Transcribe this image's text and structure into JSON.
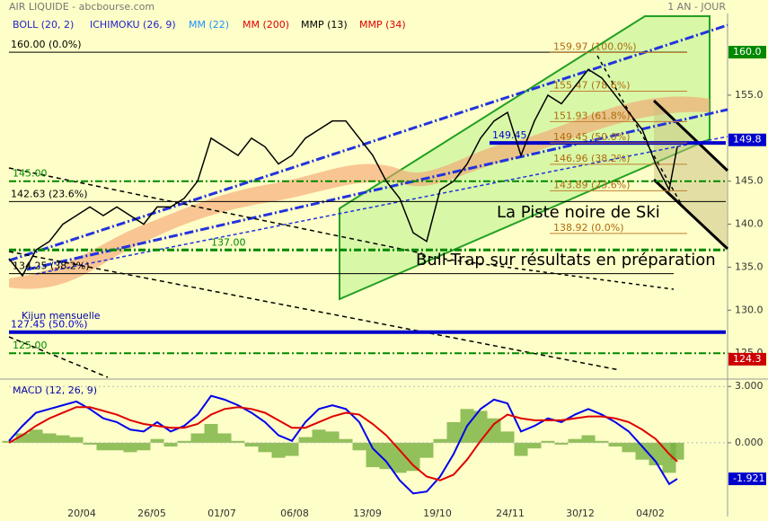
{
  "chart_data": [
    {
      "type": "line",
      "title": "AIR LIQUIDE - abcbourse.com",
      "subtitle": "1 AN - JOUR",
      "indicators": [
        {
          "name": "BOLL (20, 2)",
          "color": "#2222cc"
        },
        {
          "name": "ICHIMOKU (26, 9)",
          "color": "#2222cc"
        },
        {
          "name": "MM (22)",
          "color": "#1e90ff"
        },
        {
          "name": "MM (200)",
          "color": "#e00000"
        },
        {
          "name": "MMP (13)",
          "color": "#000000"
        },
        {
          "name": "MMP (34)",
          "color": "#e00000"
        }
      ],
      "x": [
        0,
        5,
        10,
        15,
        20,
        25,
        30,
        35,
        40,
        45,
        50,
        55,
        60,
        65,
        70,
        75,
        80,
        85,
        90,
        95,
        100,
        105,
        110,
        115,
        120,
        125,
        130,
        135,
        140,
        145,
        150,
        155,
        160,
        165,
        170,
        175,
        180,
        185,
        190,
        195,
        200,
        205,
        210,
        215,
        220,
        225,
        230,
        235,
        240,
        245,
        248
      ],
      "xlim": [
        0,
        266
      ],
      "series": [
        {
          "color": "#000000",
          "values": [
            136,
            134,
            137,
            138,
            140,
            141,
            142,
            141,
            142,
            141,
            140,
            142,
            142,
            143,
            145,
            150,
            149,
            148,
            150,
            149,
            147,
            148,
            150,
            151,
            152,
            152,
            150,
            148,
            145,
            143,
            139,
            138,
            144,
            145,
            147,
            150,
            152,
            153,
            148,
            152,
            155,
            154,
            156,
            158,
            157,
            155,
            153,
            151,
            147,
            144,
            149
          ]
        }
      ],
      "ylim": [
        122.2,
        164.5
      ],
      "yticks": [
        {
          "value": 125,
          "label": "125.0"
        },
        {
          "value": 130,
          "label": "130.0"
        },
        {
          "value": 135,
          "label": "135.0"
        },
        {
          "value": 140,
          "label": "140.0"
        },
        {
          "value": 145,
          "label": "145.0"
        },
        {
          "value": 155,
          "label": "155.0"
        }
      ],
      "tags": [
        {
          "value": 160,
          "label": "160.0",
          "color": "#008800"
        },
        {
          "value": 149.8,
          "label": "149.8",
          "color": "#0000cc"
        },
        {
          "value": 124.3,
          "label": "124.3",
          "color": "#cc0000"
        }
      ],
      "levels": [
        {
          "value": 160,
          "label": "160.00 (0.0%)",
          "color": "#000000"
        },
        {
          "value": 145,
          "label": "145.00",
          "color": "#008800"
        },
        {
          "value": 142.63,
          "label": "142.63 (23.6%)",
          "color": "#000000"
        },
        {
          "value": 137,
          "label": "137.00",
          "color": "#008800"
        },
        {
          "value": 134.25,
          "label": "134.25 (38.2%)",
          "color": "#000000"
        },
        {
          "value": 127.45,
          "label": "127.45 (50.0%)",
          "color": "#0000cc"
        },
        {
          "value": 125,
          "label": "125.00",
          "color": "#008800"
        },
        {
          "value": 149.45,
          "label": "149.45",
          "color": "#0000cc"
        }
      ],
      "fib_levels": [
        {
          "value": 159.97,
          "label": "159.97 (100.0%)"
        },
        {
          "value": 155.47,
          "label": "155.47 (78.6%)"
        },
        {
          "value": 151.93,
          "label": "151.93 (61.8%)"
        },
        {
          "value": 149.45,
          "label": "149.45 (50.0%)"
        },
        {
          "value": 146.96,
          "label": "146.96 (38.2%)"
        },
        {
          "value": 143.89,
          "label": "143.89 (23.6%)"
        },
        {
          "value": 138.92,
          "label": "138.92 (0.0%)"
        }
      ],
      "annotations": [
        "Kijun mensuelle",
        "La Piste noire de Ski",
        "Bull-Trap sur résultats en préparation"
      ]
    },
    {
      "type": "line",
      "title": "MACD (12, 26, 9)",
      "x": [
        0,
        5,
        10,
        15,
        20,
        25,
        30,
        35,
        40,
        45,
        50,
        55,
        60,
        65,
        70,
        75,
        80,
        85,
        90,
        95,
        100,
        105,
        110,
        115,
        120,
        125,
        130,
        135,
        140,
        145,
        150,
        155,
        160,
        165,
        170,
        175,
        180,
        185,
        190,
        195,
        200,
        205,
        210,
        215,
        220,
        225,
        230,
        235,
        240,
        245,
        248
      ],
      "xlim": [
        0,
        266
      ],
      "xticks": [
        {
          "value": 27,
          "label": "20/04"
        },
        {
          "value": 53,
          "label": "26/05"
        },
        {
          "value": 79,
          "label": "01/07"
        },
        {
          "value": 106,
          "label": "06/08"
        },
        {
          "value": 133,
          "label": "13/09"
        },
        {
          "value": 159,
          "label": "19/10"
        },
        {
          "value": 186,
          "label": "24/11"
        },
        {
          "value": 212,
          "label": "30/12"
        },
        {
          "value": 238,
          "label": "04/02"
        }
      ],
      "ylim": [
        -3.45,
        3.25
      ],
      "yticks": [
        {
          "value": 3,
          "label": "3.000"
        },
        {
          "value": 0,
          "label": "0.000"
        }
      ],
      "series": [
        {
          "color": "#0000ee",
          "values": [
            0.1,
            0.9,
            1.6,
            1.8,
            2.0,
            2.2,
            1.8,
            1.3,
            1.1,
            0.7,
            0.6,
            1.1,
            0.6,
            0.9,
            1.5,
            2.5,
            2.3,
            2.0,
            1.6,
            1.1,
            0.4,
            0.1,
            1.1,
            1.8,
            2.0,
            1.8,
            1.1,
            -0.3,
            -1.0,
            -2.0,
            -2.7,
            -2.6,
            -1.8,
            -0.6,
            0.9,
            1.8,
            2.3,
            2.1,
            0.6,
            0.9,
            1.3,
            1.1,
            1.5,
            1.8,
            1.5,
            1.1,
            0.6,
            -0.2,
            -1.0,
            -2.2,
            -1.921
          ]
        },
        {
          "color": "#e00000",
          "values": [
            0.0,
            0.4,
            0.9,
            1.3,
            1.6,
            1.9,
            1.9,
            1.7,
            1.5,
            1.2,
            1.0,
            0.9,
            0.8,
            0.8,
            1.0,
            1.5,
            1.8,
            1.9,
            1.8,
            1.6,
            1.2,
            0.8,
            0.8,
            1.1,
            1.4,
            1.6,
            1.5,
            1.0,
            0.4,
            -0.4,
            -1.2,
            -1.8,
            -2.0,
            -1.7,
            -0.9,
            0.1,
            1.0,
            1.5,
            1.3,
            1.2,
            1.2,
            1.2,
            1.3,
            1.4,
            1.4,
            1.3,
            1.1,
            0.7,
            0.2,
            -0.6,
            -1.0
          ]
        }
      ],
      "histogram": {
        "color": "#77b040",
        "values": [
          0.1,
          0.5,
          0.7,
          0.5,
          0.4,
          0.3,
          -0.1,
          -0.4,
          -0.4,
          -0.5,
          -0.4,
          0.2,
          -0.2,
          0.1,
          0.5,
          1.0,
          0.5,
          0.1,
          -0.2,
          -0.5,
          -0.8,
          -0.7,
          0.3,
          0.7,
          0.6,
          0.2,
          -0.4,
          -1.3,
          -1.4,
          -1.6,
          -1.5,
          -0.8,
          0.2,
          1.1,
          1.8,
          1.7,
          1.3,
          0.6,
          -0.7,
          -0.3,
          0.1,
          -0.1,
          0.2,
          0.4,
          0.1,
          -0.2,
          -0.5,
          -0.9,
          -1.2,
          -1.6,
          -0.9
        ]
      },
      "tag": {
        "value": -1.921,
        "label": "-1.921",
        "color": "#0000cc"
      }
    }
  ]
}
